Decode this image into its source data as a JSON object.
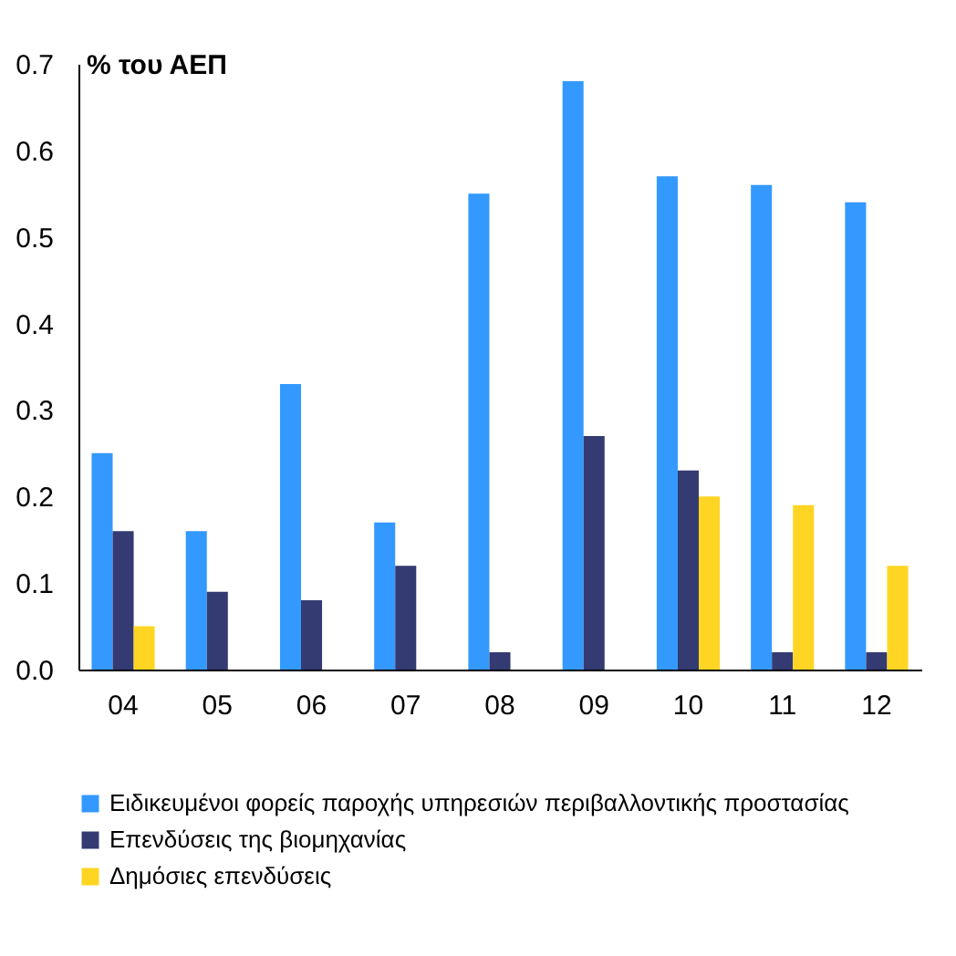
{
  "chart_data": {
    "type": "bar",
    "ylabel": "% του ΑΕΠ",
    "categories": [
      "04",
      "05",
      "06",
      "07",
      "08",
      "09",
      "10",
      "11",
      "12"
    ],
    "series": [
      {
        "name": "Ειδικευμένοι φορείς παροχής υπηρεσιών περιβαλλοντικής προστασίας",
        "color": "#3399ff",
        "values": [
          0.25,
          0.16,
          0.33,
          0.17,
          0.55,
          0.68,
          0.57,
          0.56,
          0.54
        ]
      },
      {
        "name": "Επενδύσεις της βιομηχανίας",
        "color": "#343a72",
        "values": [
          0.16,
          0.09,
          0.08,
          0.12,
          0.02,
          0.27,
          0.23,
          0.02,
          0.02
        ]
      },
      {
        "name": "Δημόσιες επενδύσεις",
        "color": "#ffd524",
        "values": [
          0.05,
          null,
          null,
          null,
          null,
          null,
          0.2,
          0.19,
          0.12
        ]
      }
    ],
    "ylim": [
      0,
      0.7
    ],
    "yticks": [
      {
        "value": 0,
        "label": "0.0"
      },
      0.1,
      0.2,
      0.3,
      0.4,
      0.5,
      0.6,
      0.7
    ],
    "grid": false,
    "legend": "bottom"
  }
}
